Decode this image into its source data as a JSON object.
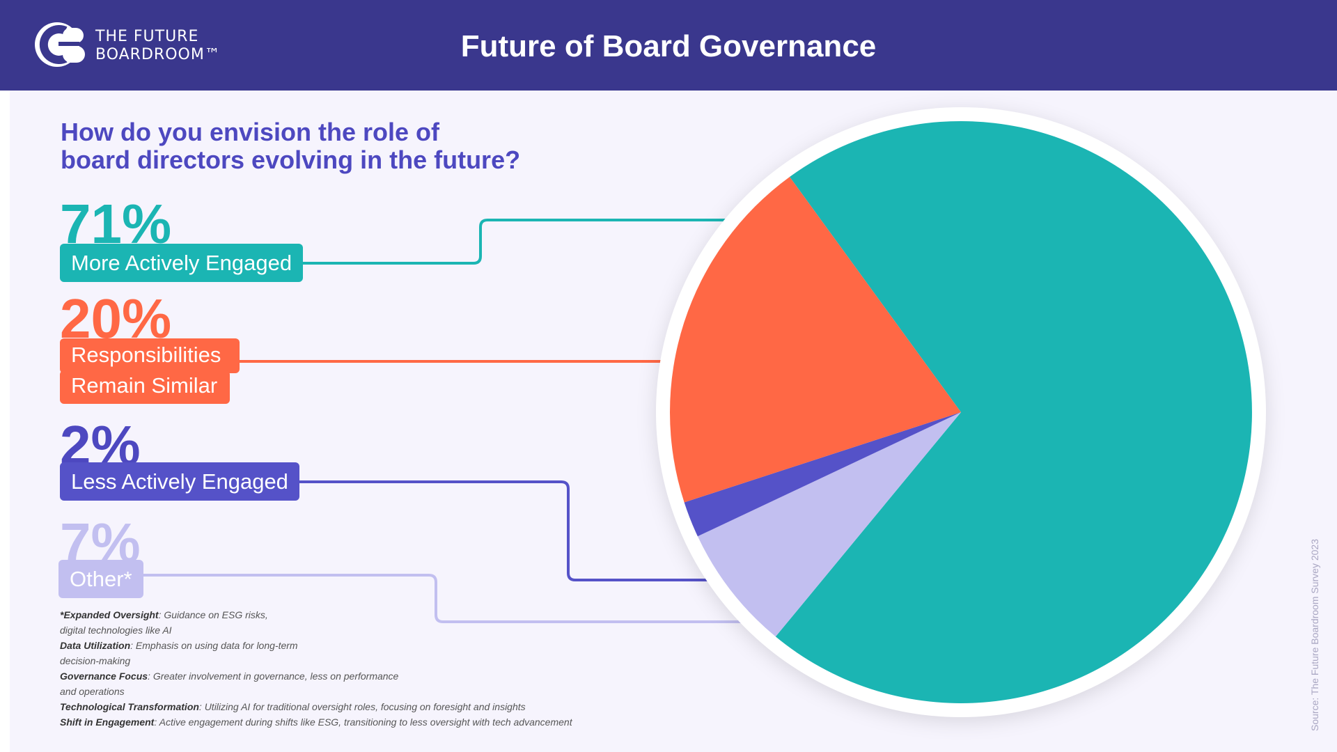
{
  "header": {
    "brand_line1": "THE FUTURE",
    "brand_line2": "BOARDROOM™",
    "logo_icon": "cb-logo-icon",
    "title": "Future of Board Governance"
  },
  "question": {
    "line1": "How do you envision the role of",
    "line2": "board directors evolving in the future?"
  },
  "chart_data": {
    "type": "pie",
    "title": "How do you envision the role of board directors evolving in the future?",
    "slices": [
      {
        "label": "More Actively Engaged",
        "value": 71,
        "display": "71%",
        "color": "#1bb5b3"
      },
      {
        "label": "Responsibilities Remain Similar",
        "label_line1": "Responsibilities",
        "label_line2": "Remain Similar",
        "value": 20,
        "display": "20%",
        "color": "#ff6845"
      },
      {
        "label": "Less Actively Engaged",
        "value": 2,
        "display": "2%",
        "color": "#5552c8"
      },
      {
        "label": "Other*",
        "value": 7,
        "display": "7%",
        "color": "#c2bff0"
      }
    ]
  },
  "notes": [
    {
      "term": "*Expanded Oversight",
      "text": ": Guidance on ESG risks,"
    },
    {
      "term": "",
      "text": "digital technologies like AI"
    },
    {
      "term": "Data Utilization",
      "text": ": Emphasis on using data for long-term"
    },
    {
      "term": "",
      "text": "decision-making"
    },
    {
      "term": "Governance Focus",
      "text": ": Greater involvement in governance, less on performance"
    },
    {
      "term": "",
      "text": "and operations"
    },
    {
      "term": "Technological Transformation",
      "text": ": Utilizing AI for traditional oversight roles, focusing on foresight and insights"
    },
    {
      "term": "Shift in Engagement",
      "text": ": Active engagement during shifts like ESG, transitioning to less oversight with tech advancement"
    }
  ],
  "source": "Source: The Future Boardroom Survey 2023"
}
